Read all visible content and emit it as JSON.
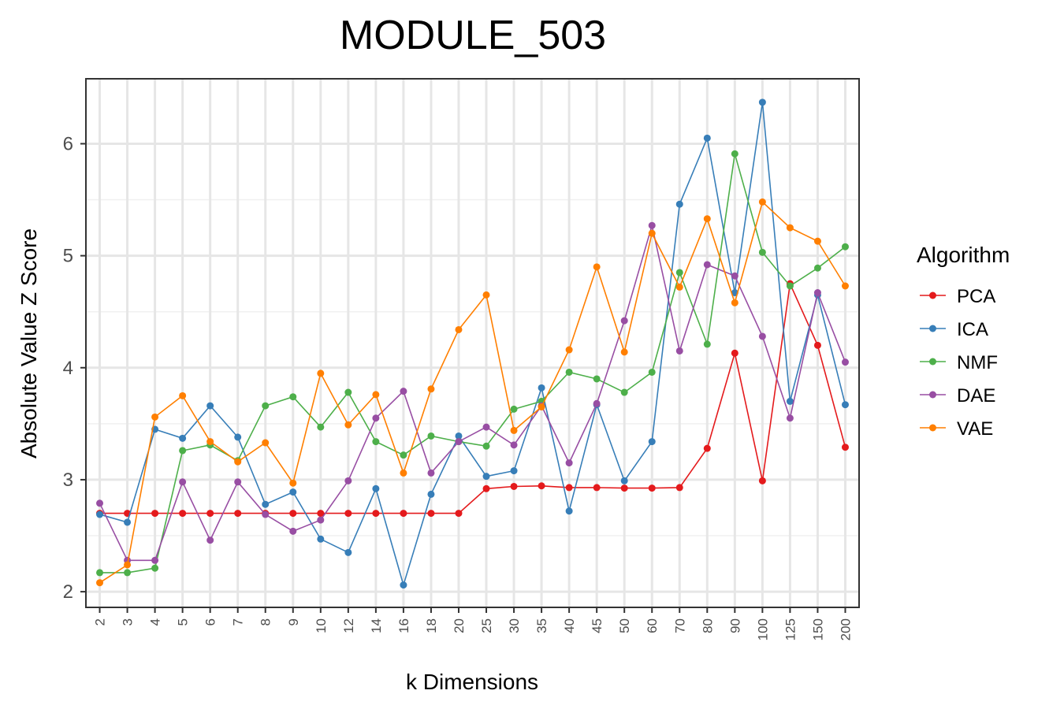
{
  "chart_data": {
    "type": "line",
    "title": "MODULE_503",
    "xlabel": "k Dimensions",
    "ylabel": "Absolute Value Z Score",
    "categories": [
      "2",
      "3",
      "4",
      "5",
      "6",
      "7",
      "8",
      "9",
      "10",
      "12",
      "14",
      "16",
      "18",
      "20",
      "25",
      "30",
      "35",
      "40",
      "45",
      "50",
      "60",
      "70",
      "80",
      "90",
      "100",
      "125",
      "150",
      "200"
    ],
    "ylim": [
      1.86,
      6.58
    ],
    "yticks": [
      2,
      3,
      4,
      5,
      6
    ],
    "grid": true,
    "legend": {
      "title": "Algorithm",
      "position": "right"
    },
    "series": [
      {
        "name": "PCA",
        "color": "#E41A1C",
        "values": [
          2.7,
          2.7,
          2.7,
          2.7,
          2.7,
          2.7,
          2.7,
          2.7,
          2.7,
          2.7,
          2.7,
          2.7,
          2.7,
          2.7,
          2.92,
          2.94,
          2.945,
          2.93,
          2.93,
          2.925,
          2.925,
          2.93,
          3.28,
          4.13,
          2.99,
          4.75,
          4.2,
          3.29
        ]
      },
      {
        "name": "ICA",
        "color": "#377EB8",
        "values": [
          2.69,
          2.62,
          3.45,
          3.37,
          3.66,
          3.38,
          2.78,
          2.89,
          2.47,
          2.35,
          2.92,
          2.06,
          2.87,
          3.39,
          3.03,
          3.08,
          3.82,
          2.72,
          3.67,
          2.99,
          3.34,
          5.46,
          6.05,
          4.67,
          6.37,
          3.7,
          4.65,
          3.67
        ]
      },
      {
        "name": "NMF",
        "color": "#4DAF4A",
        "values": [
          2.17,
          2.17,
          2.21,
          3.26,
          3.31,
          3.17,
          3.66,
          3.74,
          3.47,
          3.78,
          3.34,
          3.22,
          3.39,
          3.34,
          3.3,
          3.63,
          3.7,
          3.96,
          3.9,
          3.78,
          3.96,
          4.85,
          4.21,
          5.91,
          5.03,
          4.73,
          4.89,
          5.08
        ]
      },
      {
        "name": "DAE",
        "color": "#984EA3",
        "values": [
          2.79,
          2.28,
          2.28,
          2.98,
          2.46,
          2.98,
          2.69,
          2.54,
          2.64,
          2.99,
          3.55,
          3.79,
          3.06,
          3.34,
          3.47,
          3.31,
          3.66,
          3.15,
          3.68,
          4.42,
          5.27,
          4.15,
          4.92,
          4.82,
          4.28,
          3.55,
          4.67,
          4.05
        ]
      },
      {
        "name": "VAE",
        "color": "#FF7F00",
        "values": [
          2.08,
          2.24,
          3.56,
          3.75,
          3.34,
          3.16,
          3.33,
          2.97,
          3.95,
          3.49,
          3.76,
          3.06,
          3.81,
          4.34,
          4.65,
          3.44,
          3.65,
          4.16,
          4.9,
          4.14,
          5.2,
          4.72,
          5.33,
          4.58,
          5.48,
          5.25,
          5.13,
          4.73
        ]
      }
    ]
  }
}
